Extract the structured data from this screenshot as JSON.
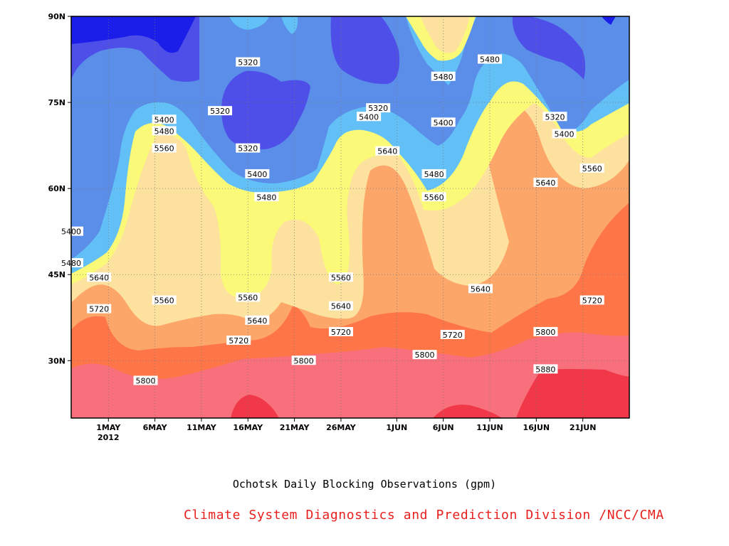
{
  "chart_data": {
    "type": "heatmap",
    "title": "Ochotsk Daily Blocking Observations (gpm)",
    "credit": "Climate System Diagnostics and Prediction Division /NCC/CMA",
    "x_ticks": [
      "1MAY",
      "6MAY",
      "11MAY",
      "16MAY",
      "21MAY",
      "26MAY",
      "1JUN",
      "6JUN",
      "11JUN",
      "16JUN",
      "21JUN"
    ],
    "x_year": "2012",
    "x_range": [
      "2012-04-27",
      "2012-06-26"
    ],
    "y_ticks": [
      "30N",
      "45N",
      "60N",
      "75N",
      "90N"
    ],
    "y_tick_values": [
      30,
      45,
      60,
      75,
      90
    ],
    "ylim": [
      20,
      90
    ],
    "grid": true,
    "levels": [
      5320,
      5400,
      5480,
      5560,
      5640,
      5720,
      5800,
      5880
    ],
    "colors": {
      "lt5320": "#1a1ee8",
      "5320": "#4e4ee8",
      "5400": "#5a8ee8",
      "5480": "#62c0f6",
      "5560": "#fafa78",
      "5640": "#fde19e",
      "5720": "#fca66a",
      "5800": "#fe7648",
      "5880": "#f7707c",
      "gt5880": "#f03848"
    },
    "contour_labels": [
      {
        "text": "5320",
        "date": "2012-05-16",
        "lat": 82
      },
      {
        "text": "5320",
        "date": "2012-05-13",
        "lat": 73.5
      },
      {
        "text": "5320",
        "date": "2012-05-16",
        "lat": 67
      },
      {
        "text": "5320",
        "date": "2012-05-30",
        "lat": 74
      },
      {
        "text": "5320",
        "date": "2012-06-18",
        "lat": 72.5
      },
      {
        "text": "5400",
        "date": "2012-05-07",
        "lat": 72
      },
      {
        "text": "5400",
        "date": "2012-05-17",
        "lat": 62.5
      },
      {
        "text": "5400",
        "date": "2012-05-29",
        "lat": 72.5
      },
      {
        "text": "5400",
        "date": "2012-06-06",
        "lat": 71.5
      },
      {
        "text": "5400",
        "date": "2012-06-19",
        "lat": 69.5
      },
      {
        "text": "5400",
        "date": "2012-04-27",
        "lat": 52.5
      },
      {
        "text": "5480",
        "date": "2012-05-07",
        "lat": 70
      },
      {
        "text": "5480",
        "date": "2012-05-18",
        "lat": 58.5
      },
      {
        "text": "5480",
        "date": "2012-06-06",
        "lat": 79.5
      },
      {
        "text": "5480",
        "date": "2012-06-11",
        "lat": 82.5
      },
      {
        "text": "5480",
        "date": "2012-06-05",
        "lat": 62.5
      },
      {
        "text": "5480",
        "date": "2012-04-27",
        "lat": 47
      },
      {
        "text": "5560",
        "date": "2012-05-07",
        "lat": 67
      },
      {
        "text": "5560",
        "date": "2012-05-07",
        "lat": 40.5
      },
      {
        "text": "5560",
        "date": "2012-05-16",
        "lat": 41
      },
      {
        "text": "5560",
        "date": "2012-05-26",
        "lat": 44.5
      },
      {
        "text": "5560",
        "date": "2012-06-05",
        "lat": 58.5
      },
      {
        "text": "5560",
        "date": "2012-06-22",
        "lat": 63.5
      },
      {
        "text": "5640",
        "date": "2012-04-30",
        "lat": 44.5
      },
      {
        "text": "5640",
        "date": "2012-05-17",
        "lat": 37
      },
      {
        "text": "5640",
        "date": "2012-05-26",
        "lat": 39.5
      },
      {
        "text": "5640",
        "date": "2012-05-31",
        "lat": 66.5
      },
      {
        "text": "5640",
        "date": "2012-06-10",
        "lat": 42.5
      },
      {
        "text": "5640",
        "date": "2012-06-17",
        "lat": 61
      },
      {
        "text": "5720",
        "date": "2012-04-30",
        "lat": 39
      },
      {
        "text": "5720",
        "date": "2012-05-15",
        "lat": 33.5
      },
      {
        "text": "5720",
        "date": "2012-05-26",
        "lat": 35
      },
      {
        "text": "5720",
        "date": "2012-06-07",
        "lat": 34.5
      },
      {
        "text": "5720",
        "date": "2012-06-22",
        "lat": 40.5
      },
      {
        "text": "5800",
        "date": "2012-05-05",
        "lat": 26.5
      },
      {
        "text": "5800",
        "date": "2012-05-22",
        "lat": 30
      },
      {
        "text": "5800",
        "date": "2012-06-04",
        "lat": 31
      },
      {
        "text": "5800",
        "date": "2012-06-17",
        "lat": 35
      },
      {
        "text": "5880",
        "date": "2012-06-17",
        "lat": 28.5
      }
    ]
  }
}
